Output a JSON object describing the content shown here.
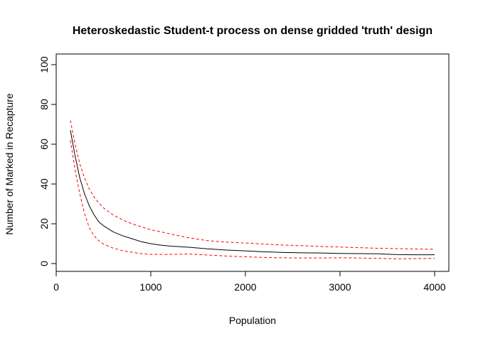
{
  "chart_data": {
    "type": "line",
    "title": "Heteroskedastic Student-t process on dense gridded 'truth' design",
    "xlabel": "Population",
    "ylabel": "Number of Marked in Recapture",
    "xlim": [
      0,
      4000
    ],
    "ylim": [
      0,
      100
    ],
    "x_ticks": [
      0,
      1000,
      2000,
      3000,
      4000
    ],
    "x_tick_labels": [
      "0",
      "1000",
      "2000",
      "3000",
      "4000"
    ],
    "y_ticks": [
      0,
      20,
      40,
      60,
      80,
      100
    ],
    "y_tick_labels": [
      "0",
      "20",
      "40",
      "60",
      "80",
      "100"
    ],
    "grid": false,
    "legend": "none",
    "series": [
      {
        "role": "mean",
        "color": "#000000",
        "dash": "solid",
        "x": [
          150,
          200,
          250,
          300,
          350,
          400,
          450,
          500,
          600,
          700,
          800,
          900,
          1000,
          1100,
          1200,
          1400,
          1600,
          1800,
          2000,
          2200,
          2400,
          2600,
          2800,
          3000,
          3200,
          3400,
          3600,
          3800,
          4000
        ],
        "y": [
          67,
          54,
          43,
          35,
          29,
          24.5,
          21,
          19,
          16,
          14,
          12.5,
          11,
          10,
          9.3,
          8.8,
          8.2,
          7.4,
          6.8,
          6.4,
          5.9,
          5.6,
          5.4,
          5.3,
          5.1,
          5.0,
          4.9,
          4.5,
          4.4,
          4.4
        ]
      },
      {
        "role": "upper",
        "color": "#ff0000",
        "dash": "dashed",
        "x": [
          150,
          200,
          250,
          300,
          350,
          400,
          450,
          500,
          600,
          700,
          800,
          900,
          1000,
          1200,
          1400,
          1600,
          1800,
          2000,
          2200,
          2400,
          2600,
          2800,
          3000,
          3200,
          3400,
          3600,
          3800,
          4000
        ],
        "y": [
          72,
          60,
          50,
          43,
          37.5,
          33.5,
          30.5,
          28,
          24.5,
          22,
          20,
          18.5,
          17,
          15,
          13,
          11.5,
          10.8,
          10.3,
          9.8,
          9.3,
          9.0,
          8.6,
          8.3,
          8.0,
          7.7,
          7.5,
          7.3,
          7.2
        ]
      },
      {
        "role": "lower",
        "color": "#ff0000",
        "dash": "dashed",
        "x": [
          150,
          200,
          250,
          300,
          350,
          400,
          450,
          500,
          600,
          700,
          800,
          900,
          1000,
          1200,
          1400,
          1600,
          1800,
          2000,
          2200,
          2400,
          2600,
          2800,
          3000,
          3200,
          3400,
          3600,
          3800,
          4000
        ],
        "y": [
          62,
          47,
          35,
          25,
          18,
          14,
          11.5,
          9.8,
          7.8,
          6.5,
          5.7,
          5.0,
          4.6,
          4.6,
          4.8,
          4.3,
          3.8,
          3.4,
          3.1,
          2.9,
          2.8,
          2.8,
          2.9,
          2.8,
          2.6,
          2.4,
          2.5,
          2.6
        ]
      }
    ]
  }
}
